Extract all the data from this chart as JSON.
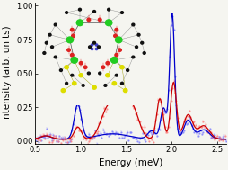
{
  "xlim": [
    0.5,
    2.6
  ],
  "ylim": [
    -0.02,
    1.02
  ],
  "xlabel": "Energy (meV)",
  "ylabel": "Intensity (arb. units)",
  "xticks": [
    0.5,
    1.0,
    1.5,
    2.0,
    2.5
  ],
  "yticks": [
    0.0,
    0.25,
    0.5,
    0.75,
    1.0
  ],
  "ytick_labels": [
    "0.00",
    "0.25",
    "0.50",
    "0.75",
    "1.00"
  ],
  "blue_solid_color": "#0000cc",
  "blue_data_color": "#7777ff",
  "red_solid_color": "#cc0000",
  "red_data_color": "#ff7777",
  "bg_color": "#f5f5f0",
  "tick_fontsize": 6,
  "label_fontsize": 7.5
}
